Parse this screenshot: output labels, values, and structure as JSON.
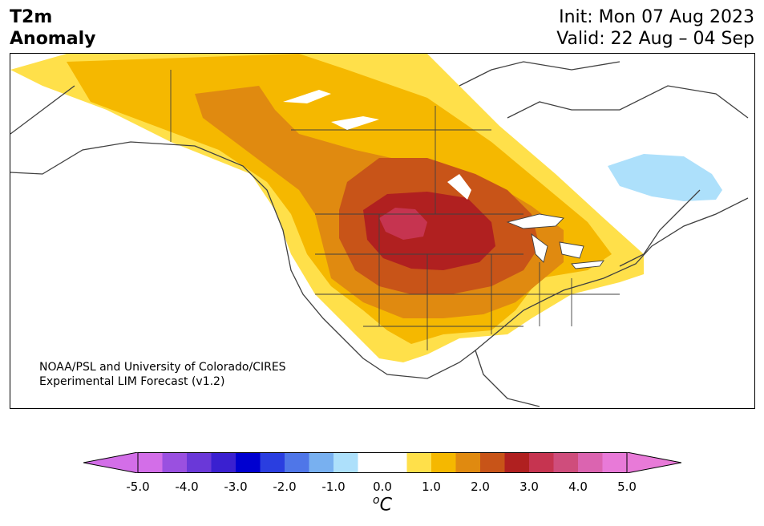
{
  "header": {
    "title_line1": "T2m",
    "title_line2": "Anomaly",
    "init": "Init: Mon 07 Aug 2023",
    "valid": "Valid: 22 Aug – 04 Sep"
  },
  "credit": {
    "line1": "NOAA/PSL and University of Colorado/CIRES",
    "line2": "Experimental LIM Forecast (v1.2)"
  },
  "colorbar": {
    "ticks": [
      "-5.0",
      "-4.0",
      "-3.0",
      "-2.0",
      "-1.0",
      "0.0",
      "1.0",
      "2.0",
      "3.0",
      "4.0",
      "5.0"
    ],
    "unit_symbol": "o",
    "unit_letter": "C",
    "colors": [
      "#d36ee8",
      "#9a50e0",
      "#6a38d8",
      "#3a20d0",
      "#0000d0",
      "#2a3ee0",
      "#4f76e8",
      "#78b0f0",
      "#ade0fb",
      "#ffffff",
      "#ffffff",
      "#ffe04a",
      "#f5b800",
      "#e08a10",
      "#c85418",
      "#b02020",
      "#c63450",
      "#cf4d7c",
      "#db64b0",
      "#e87ad8"
    ],
    "extend_low_color": "#d36ee8",
    "extend_high_color": "#e87ad8"
  },
  "legend_palette": {
    "warm_1": "#ffe04a",
    "warm_2": "#f5b800",
    "warm_3": "#e08a10",
    "warm_4": "#c85418",
    "warm_5": "#b02020",
    "warm_6": "#c63450",
    "cool_1": "#ade0fb"
  }
}
